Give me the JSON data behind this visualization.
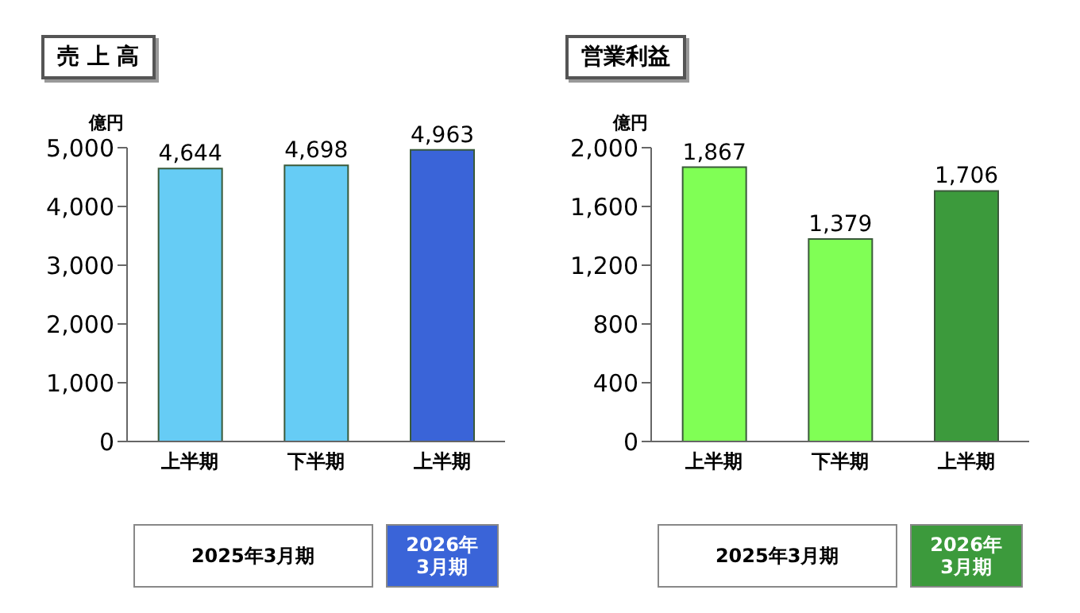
{
  "chart_data": [
    {
      "type": "bar",
      "title": "売 上 高",
      "ylabel": "億円",
      "categories": [
        "上半期",
        "下半期",
        "上半期"
      ],
      "values": [
        4644,
        4698,
        4963
      ],
      "colors": [
        "#66ccf5",
        "#66ccf5",
        "#3a64d8"
      ],
      "ylim": [
        0,
        5000
      ],
      "yticks": [
        {
          "value": 0,
          "label": "0"
        },
        {
          "value": 1000,
          "label": "1,000"
        },
        {
          "value": 2000,
          "label": "2,000"
        },
        {
          "value": 3000,
          "label": "3,000"
        },
        {
          "value": 4000,
          "label": "4,000"
        },
        {
          "value": 5000,
          "label": "5,000"
        }
      ],
      "value_labels": [
        "4,644",
        "4,698",
        "4,963"
      ],
      "annotations": [
        "2025年3月期",
        "2026年3月期"
      ]
    },
    {
      "type": "bar",
      "title": "営業利益",
      "ylabel": "億円",
      "categories": [
        "上半期",
        "下半期",
        "上半期"
      ],
      "values": [
        1867,
        1379,
        1706
      ],
      "colors": [
        "#80ff55",
        "#80ff55",
        "#3c9a3c"
      ],
      "ylim": [
        0,
        2000
      ],
      "yticks": [
        {
          "value": 0,
          "label": "0"
        },
        {
          "value": 400,
          "label": "400"
        },
        {
          "value": 800,
          "label": "800"
        },
        {
          "value": 1200,
          "label": "1,200"
        },
        {
          "value": 1600,
          "label": "1,600"
        },
        {
          "value": 2000,
          "label": "2,000"
        }
      ],
      "value_labels": [
        "1,867",
        "1,379",
        "1,706"
      ],
      "annotations": [
        "2025年3月期",
        "2026年3月期"
      ]
    }
  ]
}
